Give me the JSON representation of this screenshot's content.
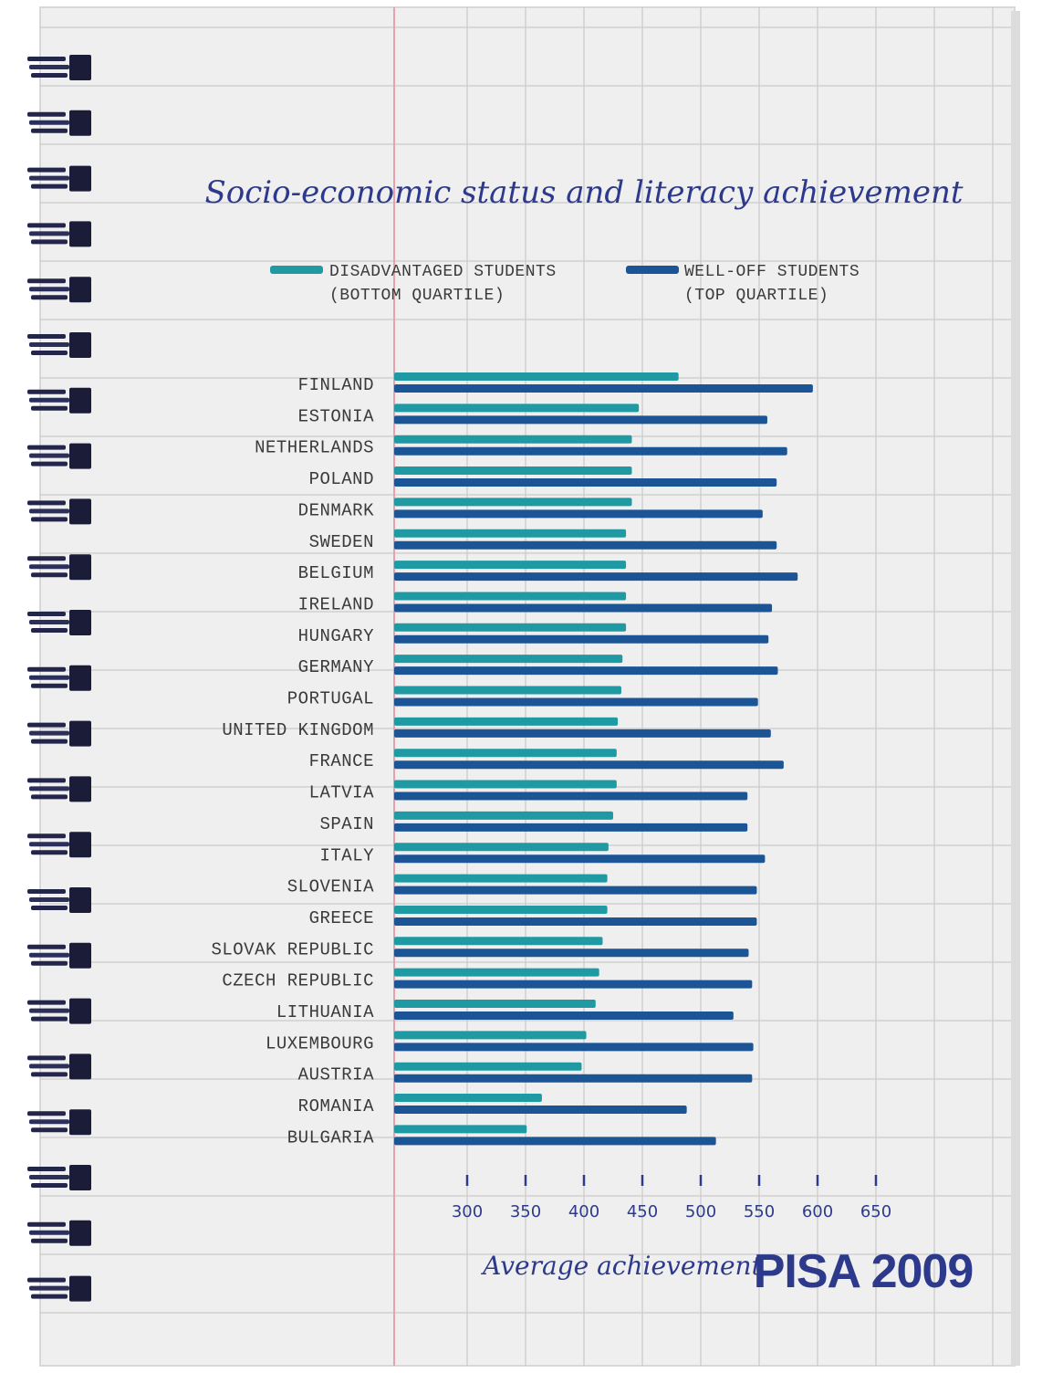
{
  "colors": {
    "disadvantaged": "#1f9aa3",
    "well_off": "#1c5596",
    "ink": "#2d3a8c",
    "margin_line": "#e8a0ad",
    "grid": "#c9c9c9"
  },
  "brand": "PISA 2009",
  "chart_data": {
    "type": "bar",
    "orientation": "horizontal",
    "title": "Socio-economic status and literacy achievement",
    "xlabel": "Average achievement",
    "x_ticks": [
      300,
      350,
      400,
      450,
      500,
      550,
      600,
      650
    ],
    "xlim": [
      237,
      680
    ],
    "grid": true,
    "legend_position": "top",
    "categories": [
      "FINLAND",
      "ESTONIA",
      "NETHERLANDS",
      "POLAND",
      "DENMARK",
      "SWEDEN",
      "BELGIUM",
      "IRELAND",
      "HUNGARY",
      "GERMANY",
      "PORTUGAL",
      "UNITED KINGDOM",
      "FRANCE",
      "LATVIA",
      "SPAIN",
      "ITALY",
      "SLOVENIA",
      "GREECE",
      "SLOVAK REPUBLIC",
      "CZECH REPUBLIC",
      "LITHUANIA",
      "LUXEMBOURG",
      "AUSTRIA",
      "ROMANIA",
      "BULGARIA"
    ],
    "series": [
      {
        "name": "DISADVANTAGED STUDENTS (BOTTOM QUARTILE)",
        "name_lines": [
          "DISADVANTAGED STUDENTS",
          "(BOTTOM QUARTILE)"
        ],
        "values": [
          481,
          447,
          441,
          441,
          441,
          436,
          436,
          436,
          436,
          433,
          432,
          429,
          428,
          428,
          425,
          421,
          420,
          420,
          416,
          413,
          410,
          402,
          398,
          364,
          351
        ]
      },
      {
        "name": "WELL-OFF STUDENTS (TOP QUARTILE)",
        "name_lines": [
          "WELL-OFF STUDENTS",
          "(TOP QUARTILE)"
        ],
        "values": [
          596,
          557,
          574,
          565,
          553,
          565,
          583,
          561,
          558,
          566,
          549,
          560,
          571,
          540,
          540,
          555,
          548,
          548,
          541,
          544,
          528,
          545,
          544,
          488,
          513
        ]
      }
    ]
  }
}
